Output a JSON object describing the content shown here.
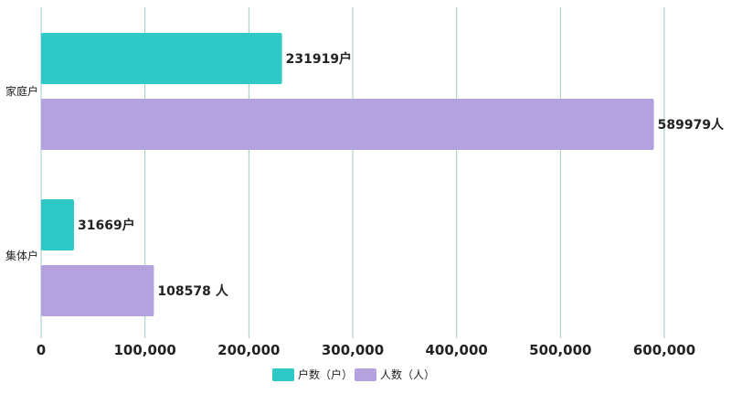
{
  "chart_data": {
    "type": "bar",
    "orientation": "horizontal",
    "categories": [
      "家庭户",
      "集体户"
    ],
    "series": [
      {
        "name": "户数（户）",
        "values": [
          231919,
          31669
        ],
        "labels": [
          "231919户",
          "31669户"
        ],
        "color": "#2ec9c6"
      },
      {
        "name": "人数（人）",
        "values": [
          589979,
          108578
        ],
        "labels": [
          "589979人",
          "108578 人"
        ],
        "color": "#b3a2dd"
      }
    ],
    "xlim": [
      0,
      600000
    ],
    "xticks": [
      0,
      100000,
      200000,
      300000,
      400000,
      500000,
      600000
    ],
    "xtick_labels": [
      "0",
      "100,000",
      "200,000",
      "300,000",
      "400,000",
      "500,000",
      "600,000"
    ],
    "grid": true,
    "grid_color": "#9cc9c9",
    "legend_position": "bottom-center",
    "title": "",
    "xlabel": "",
    "ylabel": ""
  }
}
